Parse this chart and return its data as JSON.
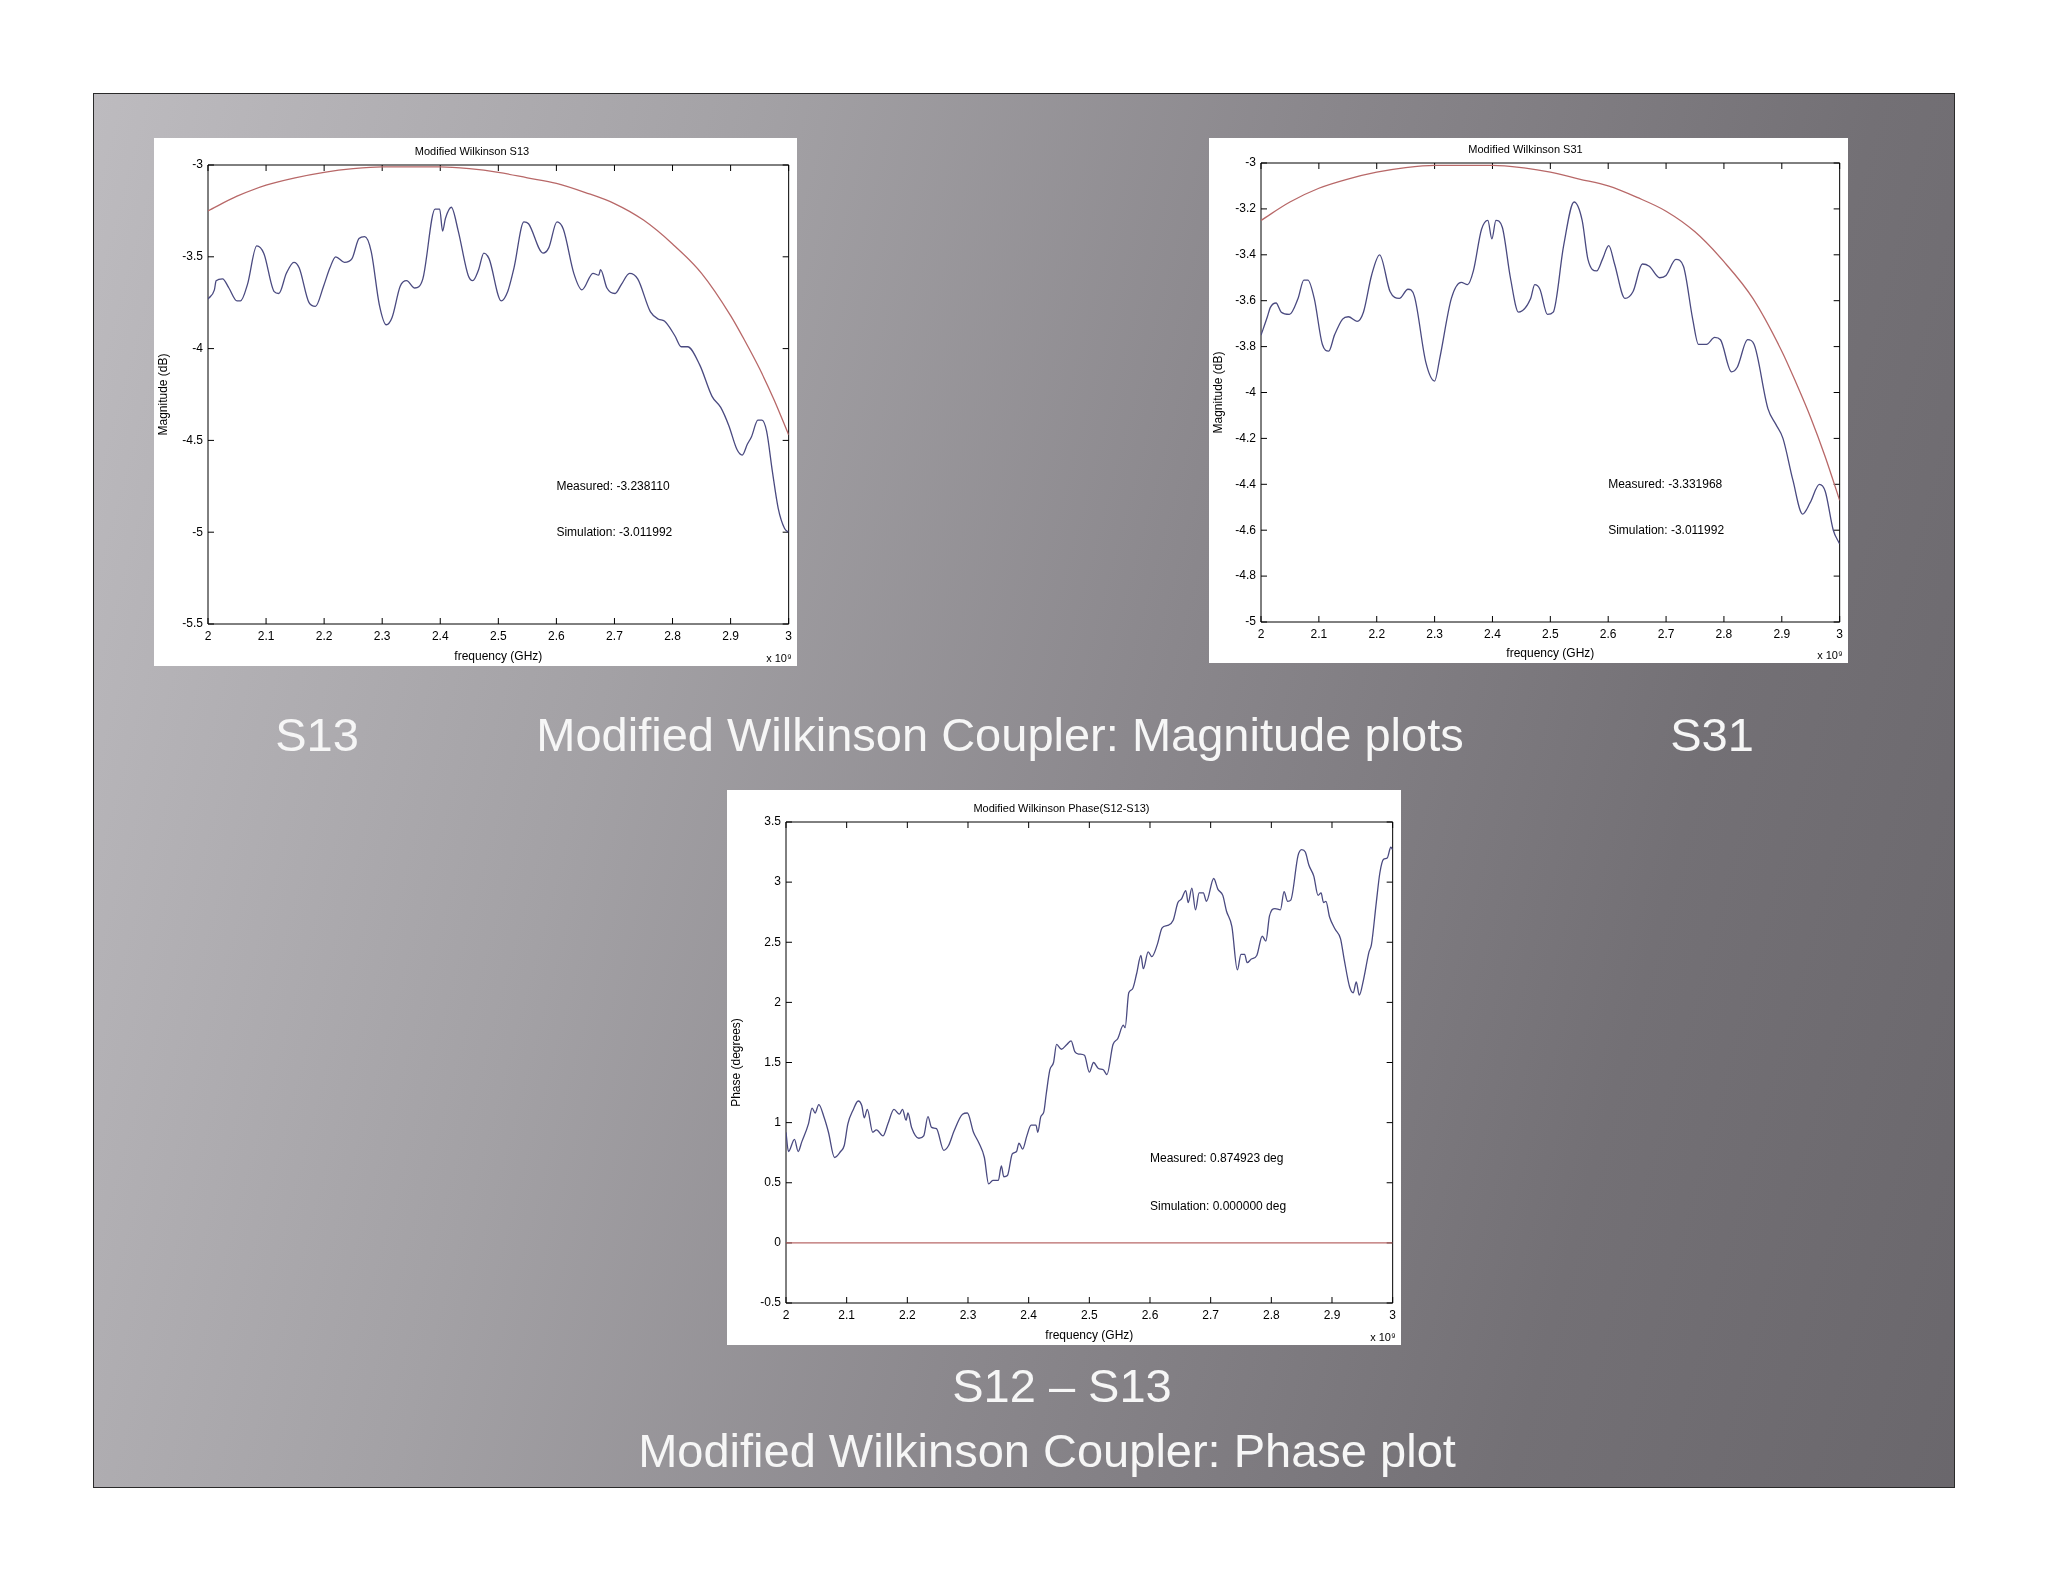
{
  "chart_data": [
    {
      "type": "line",
      "title": "Modified Wilkinson S13",
      "xlabel": "frequency (GHz)",
      "ylabel": "Magnitude (dB)",
      "xlim": [
        2,
        3
      ],
      "xticks": [
        2,
        2.1,
        2.2,
        2.3,
        2.4,
        2.5,
        2.6,
        2.7,
        2.8,
        2.9,
        3
      ],
      "ylim": [
        -5.5,
        -3
      ],
      "yticks": [
        -5.5,
        -5,
        -4.5,
        -4,
        -3.5,
        -3
      ],
      "series": [
        {
          "color": "#4a4a80",
          "x": [
            2.0,
            2.011,
            2.014,
            2.025,
            2.036,
            2.05,
            2.056,
            2.068,
            2.084,
            2.096,
            2.114,
            2.122,
            2.135,
            2.148,
            2.157,
            2.174,
            2.185,
            2.199,
            2.21,
            2.22,
            2.235,
            2.248,
            2.26,
            2.27,
            2.281,
            2.295,
            2.307,
            2.317,
            2.331,
            2.342,
            2.356,
            2.37,
            2.391,
            2.399,
            2.404,
            2.409,
            2.419,
            2.431,
            2.448,
            2.456,
            2.466,
            2.475,
            2.484,
            2.505,
            2.516,
            2.527,
            2.544,
            2.552,
            2.577,
            2.587,
            2.601,
            2.612,
            2.63,
            2.644,
            2.663,
            2.673,
            2.676,
            2.687,
            2.701,
            2.712,
            2.726,
            2.74,
            2.762,
            2.776,
            2.786,
            2.804,
            2.815,
            2.826,
            2.847,
            2.868,
            2.883,
            2.897,
            2.911,
            2.92,
            2.929,
            2.936,
            2.947,
            2.954,
            2.962,
            2.972,
            2.982,
            2.993,
            3.0
          ],
          "values": [
            -3.73,
            -3.68,
            -3.63,
            -3.62,
            -3.67,
            -3.74,
            -3.74,
            -3.65,
            -3.44,
            -3.48,
            -3.69,
            -3.7,
            -3.59,
            -3.53,
            -3.56,
            -3.75,
            -3.77,
            -3.66,
            -3.56,
            -3.5,
            -3.53,
            -3.51,
            -3.4,
            -3.39,
            -3.47,
            -3.76,
            -3.87,
            -3.83,
            -3.66,
            -3.63,
            -3.67,
            -3.62,
            -3.24,
            -3.24,
            -3.36,
            -3.29,
            -3.23,
            -3.36,
            -3.6,
            -3.63,
            -3.57,
            -3.48,
            -3.51,
            -3.74,
            -3.69,
            -3.56,
            -3.31,
            -3.32,
            -3.48,
            -3.45,
            -3.31,
            -3.35,
            -3.59,
            -3.68,
            -3.59,
            -3.6,
            -3.57,
            -3.67,
            -3.7,
            -3.65,
            -3.59,
            -3.62,
            -3.8,
            -3.84,
            -3.85,
            -3.93,
            -3.99,
            -3.99,
            -4.09,
            -4.26,
            -4.32,
            -4.42,
            -4.55,
            -4.58,
            -4.52,
            -4.48,
            -4.39,
            -4.39,
            -4.45,
            -4.67,
            -4.87,
            -4.98,
            -5.0
          ]
        },
        {
          "color": "#b86868",
          "x": [
            2.0,
            2.05,
            2.1,
            2.15,
            2.2,
            2.25,
            2.3,
            2.35,
            2.4,
            2.45,
            2.5,
            2.55,
            2.6,
            2.65,
            2.7,
            2.75,
            2.8,
            2.85,
            2.9,
            2.925,
            2.95,
            2.975,
            3.0
          ],
          "values": [
            -3.25,
            -3.17,
            -3.11,
            -3.07,
            -3.04,
            -3.02,
            -3.01,
            -3.01,
            -3.01,
            -3.02,
            -3.04,
            -3.07,
            -3.1,
            -3.15,
            -3.21,
            -3.3,
            -3.43,
            -3.59,
            -3.82,
            -3.96,
            -4.11,
            -4.28,
            -4.47
          ]
        }
      ],
      "annotations": [
        "Measured: -3.238110",
        "Simulation: -3.011992",
        "x 10⁹",
        "S13",
        "Modified Wilkinson Coupler: Magnitude plots"
      ]
    },
    {
      "type": "line",
      "title": "Modified Wilkinson S31",
      "xlabel": "frequency (GHz)",
      "ylabel": "Magnitude (dB)",
      "xlim": [
        2,
        3
      ],
      "xticks": [
        2,
        2.1,
        2.2,
        2.3,
        2.4,
        2.5,
        2.6,
        2.7,
        2.8,
        2.9,
        3
      ],
      "ylim": [
        -5,
        -3
      ],
      "yticks": [
        -5,
        -4.8,
        -4.6,
        -4.4,
        -4.2,
        -4,
        -3.8,
        -3.6,
        -3.4,
        -3.2,
        -3
      ],
      "series": [
        {
          "color": "#4a4a80",
          "x": [
            2.0,
            2.011,
            2.016,
            2.026,
            2.035,
            2.049,
            2.064,
            2.074,
            2.081,
            2.092,
            2.106,
            2.117,
            2.127,
            2.141,
            2.151,
            2.166,
            2.177,
            2.191,
            2.205,
            2.223,
            2.239,
            2.254,
            2.265,
            2.285,
            2.3,
            2.309,
            2.329,
            2.346,
            2.357,
            2.367,
            2.381,
            2.392,
            2.399,
            2.406,
            2.417,
            2.431,
            2.445,
            2.466,
            2.473,
            2.482,
            2.495,
            2.505,
            2.523,
            2.541,
            2.555,
            2.565,
            2.58,
            2.59,
            2.601,
            2.611,
            2.629,
            2.643,
            2.659,
            2.671,
            2.689,
            2.7,
            2.717,
            2.73,
            2.746,
            2.756,
            2.77,
            2.784,
            2.794,
            2.813,
            2.823,
            2.841,
            2.852,
            2.876,
            2.89,
            2.902,
            2.919,
            2.936,
            2.949,
            2.965,
            2.975,
            2.989,
            3.0
          ],
          "values": [
            -3.75,
            -3.67,
            -3.63,
            -3.61,
            -3.65,
            -3.66,
            -3.59,
            -3.51,
            -3.51,
            -3.59,
            -3.79,
            -3.82,
            -3.75,
            -3.68,
            -3.67,
            -3.69,
            -3.65,
            -3.49,
            -3.4,
            -3.56,
            -3.59,
            -3.55,
            -3.58,
            -3.87,
            -3.95,
            -3.85,
            -3.59,
            -3.52,
            -3.53,
            -3.47,
            -3.29,
            -3.25,
            -3.33,
            -3.25,
            -3.28,
            -3.5,
            -3.65,
            -3.59,
            -3.53,
            -3.55,
            -3.66,
            -3.65,
            -3.36,
            -3.17,
            -3.25,
            -3.42,
            -3.47,
            -3.42,
            -3.36,
            -3.44,
            -3.59,
            -3.56,
            -3.44,
            -3.45,
            -3.5,
            -3.49,
            -3.42,
            -3.45,
            -3.68,
            -3.79,
            -3.79,
            -3.76,
            -3.77,
            -3.91,
            -3.89,
            -3.77,
            -3.79,
            -4.07,
            -4.14,
            -4.2,
            -4.38,
            -4.53,
            -4.48,
            -4.4,
            -4.43,
            -4.6,
            -4.66
          ]
        },
        {
          "color": "#b86868",
          "x": [
            2.0,
            2.05,
            2.1,
            2.15,
            2.2,
            2.25,
            2.3,
            2.35,
            2.4,
            2.45,
            2.5,
            2.55,
            2.6,
            2.65,
            2.7,
            2.75,
            2.8,
            2.85,
            2.9,
            2.925,
            2.95,
            2.975,
            3.0
          ],
          "values": [
            -3.25,
            -3.17,
            -3.11,
            -3.07,
            -3.04,
            -3.02,
            -3.01,
            -3.01,
            -3.01,
            -3.02,
            -3.04,
            -3.07,
            -3.1,
            -3.15,
            -3.21,
            -3.3,
            -3.43,
            -3.59,
            -3.82,
            -3.96,
            -4.11,
            -4.28,
            -4.47
          ]
        }
      ],
      "annotations": [
        "Measured: -3.331968",
        "Simulation: -3.011992",
        "x 10⁹",
        "S31"
      ]
    },
    {
      "type": "line",
      "title": "Modified Wilkinson Phase(S12-S13)",
      "xlabel": "frequency (GHz)",
      "ylabel": "Phase (degrees)",
      "xlim": [
        2,
        3
      ],
      "xticks": [
        2,
        2.1,
        2.2,
        2.3,
        2.4,
        2.5,
        2.6,
        2.7,
        2.8,
        2.9,
        3
      ],
      "ylim": [
        -0.5,
        3.5
      ],
      "yticks": [
        -0.5,
        0,
        0.5,
        1,
        1.5,
        2,
        2.5,
        3,
        3.5
      ],
      "series": [
        {
          "color": "#4a4a80",
          "x": [
            2.0,
            2.004,
            2.014,
            2.02,
            2.026,
            2.037,
            2.043,
            2.048,
            2.054,
            2.063,
            2.07,
            2.08,
            2.09,
            2.096,
            2.102,
            2.111,
            2.119,
            2.125,
            2.129,
            2.134,
            2.143,
            2.149,
            2.16,
            2.168,
            2.178,
            2.187,
            2.192,
            2.198,
            2.201,
            2.207,
            2.219,
            2.227,
            2.234,
            2.24,
            2.248,
            2.26,
            2.268,
            2.277,
            2.291,
            2.299,
            2.309,
            2.318,
            2.327,
            2.334,
            2.341,
            2.35,
            2.355,
            2.359,
            2.365,
            2.373,
            2.38,
            2.384,
            2.39,
            2.397,
            2.404,
            2.412,
            2.415,
            2.42,
            2.425,
            2.429,
            2.435,
            2.441,
            2.446,
            2.454,
            2.463,
            2.47,
            2.476,
            2.483,
            2.492,
            2.5,
            2.507,
            2.515,
            2.523,
            2.529,
            2.539,
            2.547,
            2.556,
            2.559,
            2.565,
            2.571,
            2.578,
            2.585,
            2.589,
            2.597,
            2.603,
            2.612,
            2.62,
            2.629,
            2.638,
            2.646,
            2.652,
            2.659,
            2.663,
            2.669,
            2.675,
            2.681,
            2.688,
            2.693,
            2.705,
            2.712,
            2.72,
            2.726,
            2.735,
            2.744,
            2.75,
            2.756,
            2.76,
            2.767,
            2.776,
            2.785,
            2.791,
            2.797,
            2.806,
            2.815,
            2.821,
            2.827,
            2.832,
            2.844,
            2.85,
            2.856,
            2.862,
            2.87,
            2.877,
            2.882,
            2.886,
            2.89,
            2.896,
            2.905,
            2.914,
            2.92,
            2.929,
            2.935,
            2.94,
            2.945,
            2.952,
            2.961,
            2.965,
            2.973,
            2.979,
            2.985,
            2.991,
            2.997,
            3.0
          ],
          "values": [
            0.92,
            0.76,
            0.86,
            0.76,
            0.84,
            0.99,
            1.12,
            1.08,
            1.15,
            1.04,
            0.92,
            0.71,
            0.76,
            0.81,
            0.99,
            1.11,
            1.18,
            1.14,
            1.04,
            1.11,
            0.92,
            0.94,
            0.89,
            0.99,
            1.11,
            1.07,
            1.11,
            1.02,
            1.08,
            0.96,
            0.87,
            0.89,
            1.05,
            0.96,
            0.95,
            0.77,
            0.81,
            0.93,
            1.07,
            1.08,
            0.92,
            0.83,
            0.71,
            0.49,
            0.52,
            0.52,
            0.64,
            0.55,
            0.56,
            0.74,
            0.76,
            0.83,
            0.78,
            0.89,
            0.98,
            0.98,
            0.92,
            1.05,
            1.09,
            1.24,
            1.44,
            1.5,
            1.65,
            1.61,
            1.65,
            1.68,
            1.59,
            1.57,
            1.56,
            1.42,
            1.5,
            1.45,
            1.44,
            1.4,
            1.65,
            1.7,
            1.81,
            1.79,
            2.08,
            2.11,
            2.24,
            2.39,
            2.28,
            2.42,
            2.38,
            2.48,
            2.62,
            2.64,
            2.68,
            2.83,
            2.86,
            2.93,
            2.83,
            2.95,
            2.77,
            2.91,
            2.91,
            2.84,
            3.03,
            2.94,
            2.89,
            2.76,
            2.63,
            2.27,
            2.4,
            2.4,
            2.33,
            2.36,
            2.39,
            2.55,
            2.51,
            2.72,
            2.78,
            2.77,
            2.92,
            2.84,
            2.85,
            3.22,
            3.27,
            3.25,
            3.14,
            3.05,
            2.89,
            2.91,
            2.83,
            2.84,
            2.71,
            2.61,
            2.53,
            2.36,
            2.13,
            2.08,
            2.17,
            2.06,
            2.19,
            2.42,
            2.48,
            2.83,
            3.08,
            3.19,
            3.2,
            3.29,
            3.27
          ]
        },
        {
          "color": "#b86868",
          "x": [
            2,
            3
          ],
          "values": [
            0,
            0
          ]
        }
      ],
      "annotations": [
        "Measured: 0.874923 deg",
        "Simulation: 0.000000 deg",
        "x 10⁹",
        "S12 – S13",
        "Modified Wilkinson Coupler: Phase plot"
      ]
    }
  ]
}
